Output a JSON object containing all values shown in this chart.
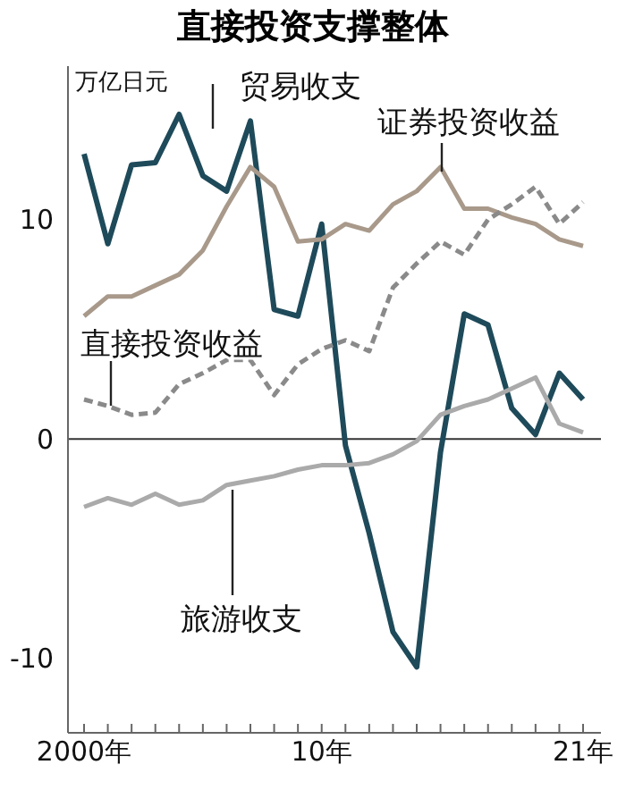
{
  "chart_data": {
    "type": "line",
    "title": "直接投资支撑整体",
    "ylabel": "万亿日元",
    "categories": [
      "2000年",
      null,
      null,
      null,
      null,
      null,
      null,
      null,
      null,
      null,
      "10年",
      null,
      null,
      null,
      null,
      null,
      null,
      null,
      null,
      null,
      null,
      "21年"
    ],
    "series": [
      {
        "name": "贸易收支",
        "color": "#1e4a5a",
        "values": [
          13.0,
          8.9,
          12.5,
          12.6,
          14.8,
          12.0,
          11.3,
          14.5,
          5.9,
          5.6,
          9.8,
          -0.3,
          -4.3,
          -8.8,
          -10.4,
          -0.6,
          5.7,
          5.2,
          1.4,
          0.2,
          3.0,
          1.8
        ]
      },
      {
        "name": "证券投资收益",
        "color": "#a8998a",
        "values": [
          5.6,
          6.5,
          6.5,
          7.0,
          7.5,
          8.6,
          10.6,
          12.4,
          11.5,
          9.0,
          9.1,
          9.8,
          9.5,
          10.7,
          11.3,
          12.4,
          10.5,
          10.5,
          10.1,
          9.8,
          9.1,
          8.8
        ]
      },
      {
        "name": "直接投资收益",
        "color": "#8a8a8a",
        "line_style": "dashed",
        "values": [
          1.8,
          1.5,
          1.1,
          1.2,
          2.5,
          3.0,
          3.6,
          3.6,
          2.0,
          3.4,
          4.1,
          4.5,
          4.0,
          6.9,
          8.0,
          9.0,
          8.4,
          10.0,
          10.7,
          11.5,
          9.8,
          10.8
        ]
      },
      {
        "name": "旅游收支",
        "color": "#aaaaaa",
        "values": [
          -3.1,
          -2.7,
          -3.0,
          -2.5,
          -3.0,
          -2.8,
          -2.1,
          -1.9,
          -1.7,
          -1.4,
          -1.2,
          -1.2,
          -1.1,
          -0.7,
          -0.1,
          1.1,
          1.5,
          1.8,
          2.3,
          2.8,
          0.7,
          0.3
        ]
      }
    ],
    "ylim": [
      -13.4,
      17
    ],
    "yticks": [
      -10,
      0,
      10
    ],
    "ref_lines": [
      {
        "axis": "y",
        "value": 0,
        "color": "#333333"
      }
    ],
    "grid": false,
    "legend": false,
    "marker": "none"
  }
}
